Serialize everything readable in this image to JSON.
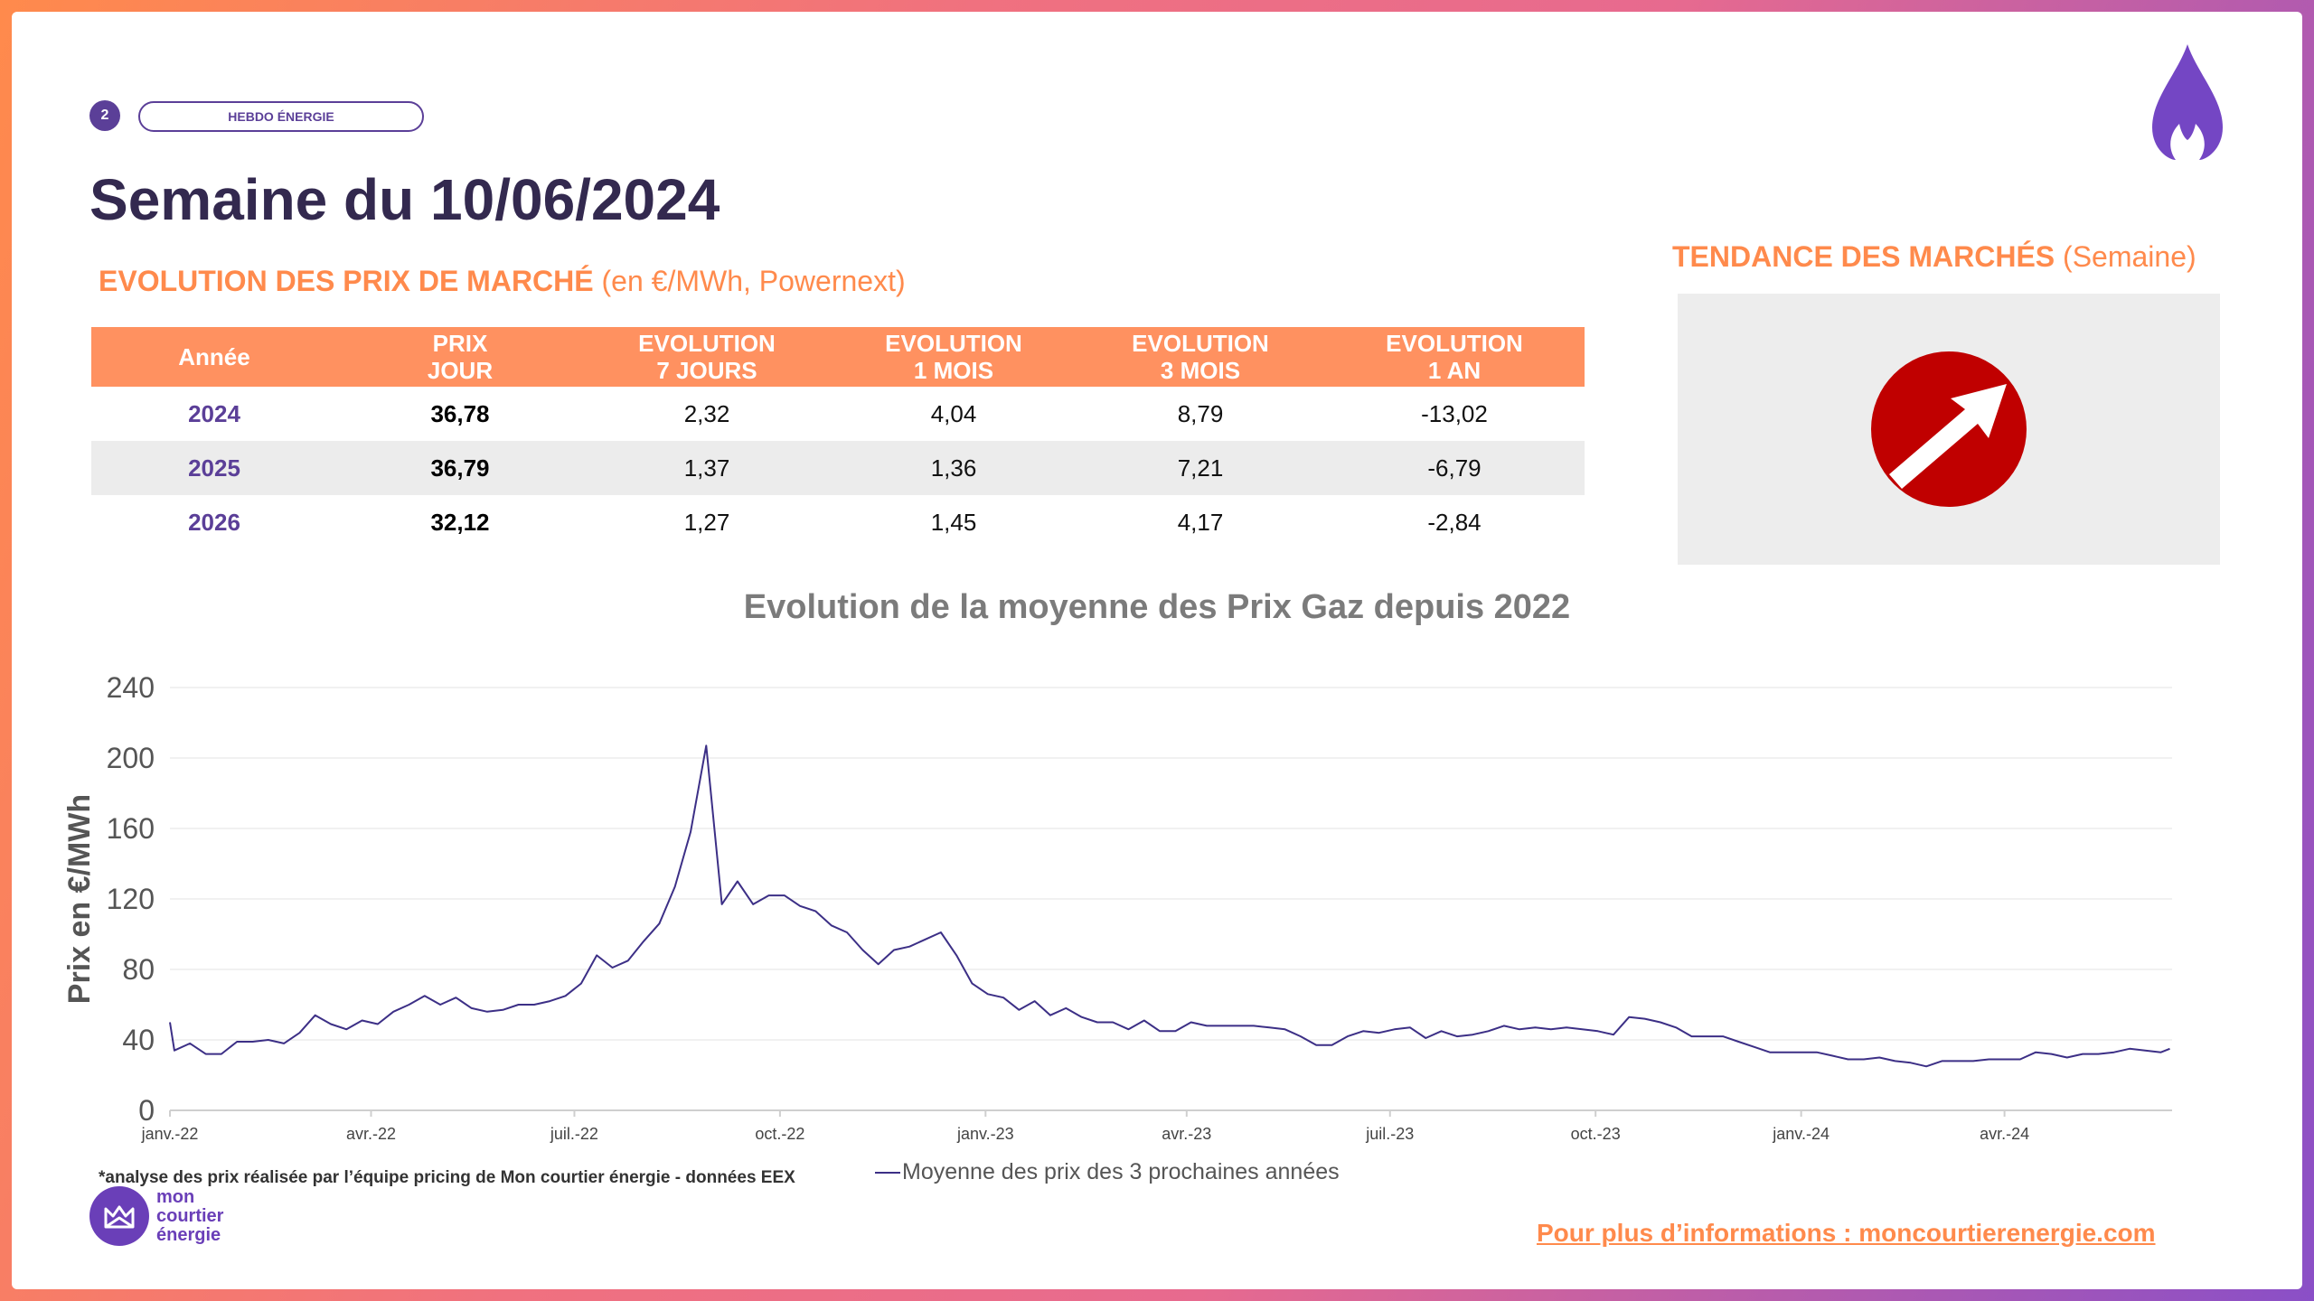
{
  "header": {
    "page_number": "2",
    "tag": "HEBDO ÉNERGIE",
    "title": "Semaine du 10/06/2024",
    "subtitle_highlight": "EVOLUTION DES PRIX DE MARCHÉ",
    "subtitle_normal": "(en €/MWh, Powernext)"
  },
  "trend": {
    "title_highlight": "TENDANCE DES MARCHÉS",
    "title_normal": "(Semaine)",
    "direction": "up",
    "icon": "arrow-up-right-icon",
    "color": "#c00000"
  },
  "table": {
    "headers": [
      [
        "Année"
      ],
      [
        "PRIX",
        "JOUR"
      ],
      [
        "EVOLUTION",
        "7 JOURS"
      ],
      [
        "EVOLUTION",
        "1 MOIS"
      ],
      [
        "EVOLUTION",
        "3 MOIS"
      ],
      [
        "EVOLUTION",
        "1 AN"
      ]
    ],
    "rows": [
      [
        "2024",
        "36,78",
        "2,32",
        "4,04",
        "8,79",
        "-13,02"
      ],
      [
        "2025",
        "36,79",
        "1,37",
        "1,36",
        "7,21",
        "-6,79"
      ],
      [
        "2026",
        "32,12",
        "1,27",
        "1,45",
        "4,17",
        "-2,84"
      ]
    ]
  },
  "chart_data": {
    "type": "line",
    "title": "Evolution de la moyenne des Prix Gaz depuis 2022",
    "ylabel": "Prix en €/MWh",
    "xlabel": "",
    "ylim": [
      0,
      240
    ],
    "yticks": [
      0,
      40,
      80,
      120,
      160,
      200,
      240
    ],
    "xlim": [
      "2022-01-01",
      "2024-06-15"
    ],
    "x_tick_labels": [
      {
        "label": "janv.-22",
        "date": "2022-01-01"
      },
      {
        "label": "avr.-22",
        "date": "2022-04-01"
      },
      {
        "label": "juil.-22",
        "date": "2022-07-01"
      },
      {
        "label": "oct.-22",
        "date": "2022-10-01"
      },
      {
        "label": "janv.-23",
        "date": "2023-01-01"
      },
      {
        "label": "avr.-23",
        "date": "2023-04-01"
      },
      {
        "label": "juil.-23",
        "date": "2023-07-01"
      },
      {
        "label": "oct.-23",
        "date": "2023-10-01"
      },
      {
        "label": "janv.-24",
        "date": "2024-01-01"
      },
      {
        "label": "avr.-24",
        "date": "2024-04-01"
      }
    ],
    "grid": true,
    "color": "#3c2f86",
    "series": [
      {
        "name": "Moyenne des prix des 3 prochaines années",
        "points": [
          [
            "2022-01-01",
            50
          ],
          [
            "2022-01-03",
            34
          ],
          [
            "2022-01-10",
            38
          ],
          [
            "2022-01-17",
            32
          ],
          [
            "2022-01-24",
            32
          ],
          [
            "2022-01-31",
            39
          ],
          [
            "2022-02-07",
            39
          ],
          [
            "2022-02-14",
            40
          ],
          [
            "2022-02-21",
            38
          ],
          [
            "2022-02-28",
            44
          ],
          [
            "2022-03-07",
            54
          ],
          [
            "2022-03-14",
            49
          ],
          [
            "2022-03-21",
            46
          ],
          [
            "2022-03-28",
            51
          ],
          [
            "2022-04-04",
            49
          ],
          [
            "2022-04-11",
            56
          ],
          [
            "2022-04-18",
            60
          ],
          [
            "2022-04-25",
            65
          ],
          [
            "2022-05-02",
            60
          ],
          [
            "2022-05-09",
            64
          ],
          [
            "2022-05-16",
            58
          ],
          [
            "2022-05-23",
            56
          ],
          [
            "2022-05-30",
            57
          ],
          [
            "2022-06-06",
            60
          ],
          [
            "2022-06-13",
            60
          ],
          [
            "2022-06-20",
            62
          ],
          [
            "2022-06-27",
            65
          ],
          [
            "2022-07-04",
            72
          ],
          [
            "2022-07-11",
            88
          ],
          [
            "2022-07-18",
            81
          ],
          [
            "2022-07-25",
            85
          ],
          [
            "2022-08-01",
            96
          ],
          [
            "2022-08-08",
            106
          ],
          [
            "2022-08-15",
            127
          ],
          [
            "2022-08-22",
            158
          ],
          [
            "2022-08-29",
            207
          ],
          [
            "2022-09-05",
            117
          ],
          [
            "2022-09-12",
            130
          ],
          [
            "2022-09-19",
            117
          ],
          [
            "2022-09-26",
            122
          ],
          [
            "2022-10-03",
            122
          ],
          [
            "2022-10-10",
            116
          ],
          [
            "2022-10-17",
            113
          ],
          [
            "2022-10-24",
            105
          ],
          [
            "2022-10-31",
            101
          ],
          [
            "2022-11-07",
            91
          ],
          [
            "2022-11-14",
            83
          ],
          [
            "2022-11-21",
            91
          ],
          [
            "2022-11-28",
            93
          ],
          [
            "2022-12-05",
            97
          ],
          [
            "2022-12-12",
            101
          ],
          [
            "2022-12-19",
            88
          ],
          [
            "2022-12-26",
            72
          ],
          [
            "2023-01-02",
            66
          ],
          [
            "2023-01-09",
            64
          ],
          [
            "2023-01-16",
            57
          ],
          [
            "2023-01-23",
            62
          ],
          [
            "2023-01-30",
            54
          ],
          [
            "2023-02-06",
            58
          ],
          [
            "2023-02-13",
            53
          ],
          [
            "2023-02-20",
            50
          ],
          [
            "2023-02-27",
            50
          ],
          [
            "2023-03-06",
            46
          ],
          [
            "2023-03-13",
            51
          ],
          [
            "2023-03-20",
            45
          ],
          [
            "2023-03-27",
            45
          ],
          [
            "2023-04-03",
            50
          ],
          [
            "2023-04-10",
            48
          ],
          [
            "2023-04-17",
            48
          ],
          [
            "2023-04-24",
            48
          ],
          [
            "2023-05-01",
            48
          ],
          [
            "2023-05-08",
            47
          ],
          [
            "2023-05-15",
            46
          ],
          [
            "2023-05-22",
            42
          ],
          [
            "2023-05-29",
            37
          ],
          [
            "2023-06-05",
            37
          ],
          [
            "2023-06-12",
            42
          ],
          [
            "2023-06-19",
            45
          ],
          [
            "2023-06-26",
            44
          ],
          [
            "2023-07-03",
            46
          ],
          [
            "2023-07-10",
            47
          ],
          [
            "2023-07-17",
            41
          ],
          [
            "2023-07-24",
            45
          ],
          [
            "2023-07-31",
            42
          ],
          [
            "2023-08-07",
            43
          ],
          [
            "2023-08-14",
            45
          ],
          [
            "2023-08-21",
            48
          ],
          [
            "2023-08-28",
            46
          ],
          [
            "2023-09-04",
            47
          ],
          [
            "2023-09-11",
            46
          ],
          [
            "2023-09-18",
            47
          ],
          [
            "2023-09-25",
            46
          ],
          [
            "2023-10-02",
            45
          ],
          [
            "2023-10-09",
            43
          ],
          [
            "2023-10-16",
            53
          ],
          [
            "2023-10-23",
            52
          ],
          [
            "2023-10-30",
            50
          ],
          [
            "2023-11-06",
            47
          ],
          [
            "2023-11-13",
            42
          ],
          [
            "2023-11-20",
            42
          ],
          [
            "2023-11-27",
            42
          ],
          [
            "2023-12-04",
            39
          ],
          [
            "2023-12-11",
            36
          ],
          [
            "2023-12-18",
            33
          ],
          [
            "2023-12-25",
            33
          ],
          [
            "2024-01-01",
            33
          ],
          [
            "2024-01-08",
            33
          ],
          [
            "2024-01-15",
            31
          ],
          [
            "2024-01-22",
            29
          ],
          [
            "2024-01-29",
            29
          ],
          [
            "2024-02-05",
            30
          ],
          [
            "2024-02-12",
            28
          ],
          [
            "2024-02-19",
            27
          ],
          [
            "2024-02-26",
            25
          ],
          [
            "2024-03-04",
            28
          ],
          [
            "2024-03-11",
            28
          ],
          [
            "2024-03-18",
            28
          ],
          [
            "2024-03-25",
            29
          ],
          [
            "2024-04-01",
            29
          ],
          [
            "2024-04-08",
            29
          ],
          [
            "2024-04-15",
            33
          ],
          [
            "2024-04-22",
            32
          ],
          [
            "2024-04-29",
            30
          ],
          [
            "2024-05-06",
            32
          ],
          [
            "2024-05-13",
            32
          ],
          [
            "2024-05-20",
            33
          ],
          [
            "2024-05-27",
            35
          ],
          [
            "2024-06-03",
            34
          ],
          [
            "2024-06-10",
            33
          ],
          [
            "2024-06-14",
            35
          ]
        ]
      }
    ]
  },
  "footer": {
    "footnote": "*analyse des prix réalisée par l’équipe pricing de Mon courtier énergie -  données EEX",
    "legend_label": "Moyenne des prix des 3 prochaines années",
    "logo_lines": [
      "mon",
      "courtier",
      "énergie"
    ],
    "link_text": "Pour plus d’informations : moncourtierenergie.com"
  },
  "colors": {
    "accent_orange": "#ff8a4c",
    "brand_purple": "#5b3f98",
    "title_dark": "#33294f",
    "line": "#3c2f86"
  }
}
